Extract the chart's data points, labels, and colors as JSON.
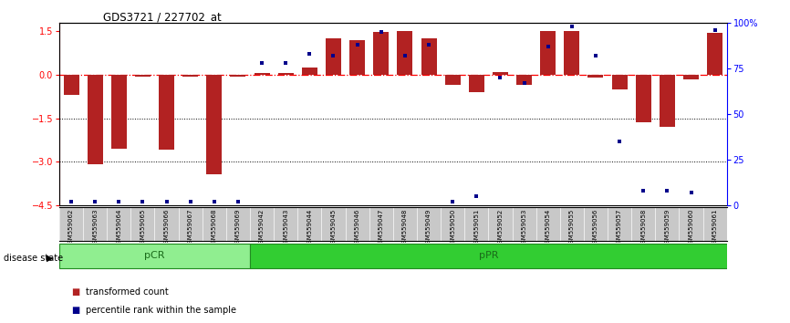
{
  "title": "GDS3721 / 227702_at",
  "samples": [
    "GSM559062",
    "GSM559063",
    "GSM559064",
    "GSM559065",
    "GSM559066",
    "GSM559067",
    "GSM559068",
    "GSM559069",
    "GSM559042",
    "GSM559043",
    "GSM559044",
    "GSM559045",
    "GSM559046",
    "GSM559047",
    "GSM559048",
    "GSM559049",
    "GSM559050",
    "GSM559051",
    "GSM559052",
    "GSM559053",
    "GSM559054",
    "GSM559055",
    "GSM559056",
    "GSM559057",
    "GSM559058",
    "GSM559059",
    "GSM559060",
    "GSM559061"
  ],
  "groups": [
    {
      "label": "pCR",
      "start": 0,
      "end": 8,
      "color": "#90EE90"
    },
    {
      "label": "pPR",
      "start": 8,
      "end": 28,
      "color": "#32CD32"
    }
  ],
  "transformed_count": [
    -0.7,
    -3.1,
    -2.55,
    -0.05,
    -2.6,
    -0.05,
    -3.45,
    -0.05,
    0.06,
    0.05,
    0.25,
    1.25,
    1.2,
    1.48,
    1.5,
    1.25,
    -0.35,
    -0.6,
    0.1,
    -0.35,
    1.5,
    1.5,
    -0.1,
    -0.5,
    -1.65,
    -1.8,
    -0.15,
    1.45
  ],
  "percentile_rank": [
    2,
    2,
    2,
    2,
    2,
    2,
    2,
    2,
    78,
    78,
    83,
    82,
    88,
    95,
    82,
    88,
    2,
    5,
    70,
    67,
    87,
    98,
    82,
    35,
    8,
    8,
    7,
    96
  ],
  "ylim_left": [
    -4.5,
    1.8
  ],
  "ylim_right": [
    0,
    100
  ],
  "left_yticks": [
    -4.5,
    -3.0,
    -1.5,
    0.0,
    1.5
  ],
  "right_yticks": [
    0,
    25,
    50,
    75,
    100
  ],
  "right_yticklabels": [
    "0",
    "25",
    "50",
    "75",
    "100%"
  ],
  "hlines_dotted": [
    -1.5,
    -3.0
  ],
  "hline_dashed": 0.0,
  "bar_color": "#B22222",
  "dot_color": "#00008B",
  "disease_state_label": "disease state",
  "legend_items": [
    {
      "color": "#B22222",
      "label": "transformed count"
    },
    {
      "color": "#00008B",
      "label": "percentile rank within the sample"
    }
  ]
}
